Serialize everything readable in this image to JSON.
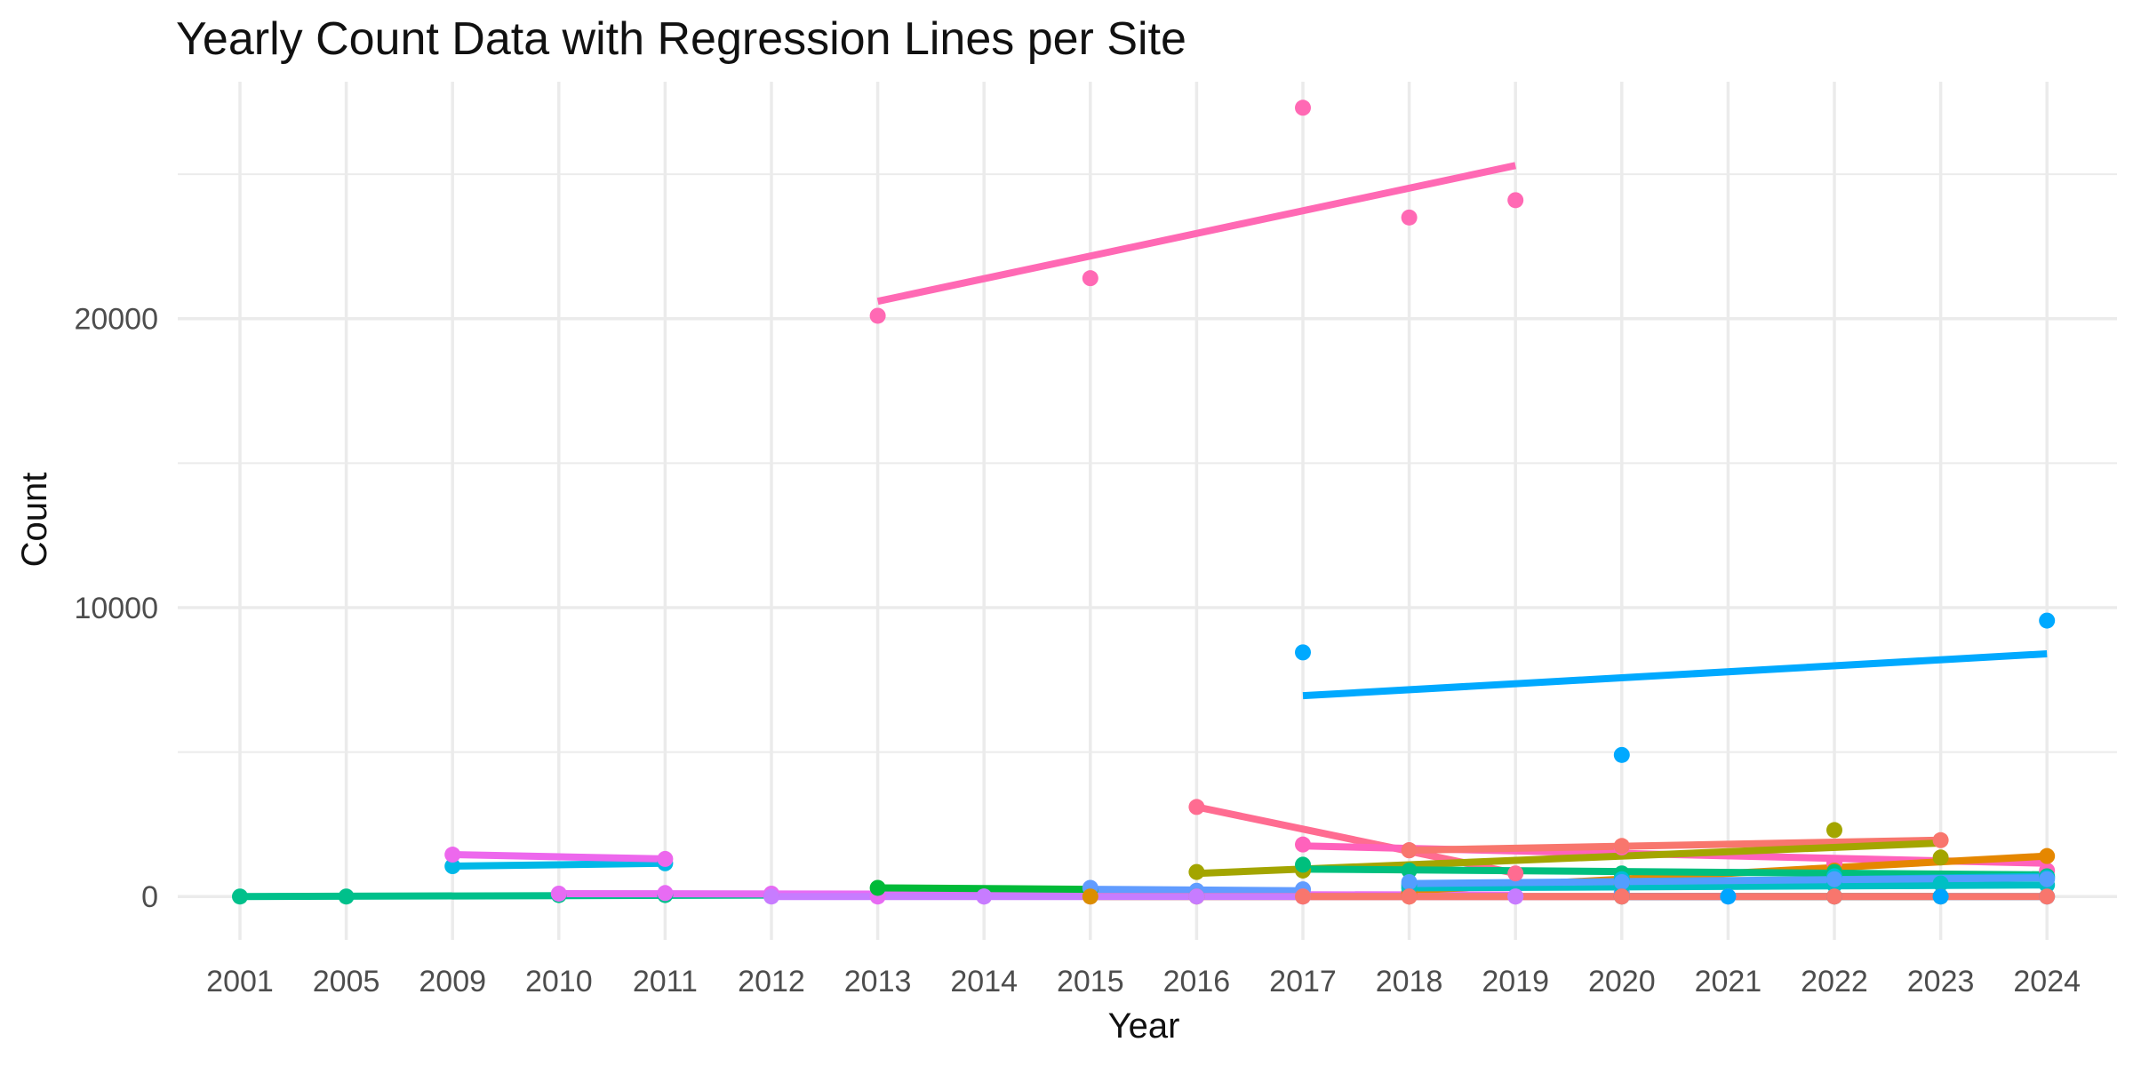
{
  "chart_data": {
    "type": "scatter",
    "title": "Yearly Count Data with Regression Lines per Site",
    "xlabel": "Year",
    "ylabel": "Count",
    "x_axis_kind": "categorical",
    "categories": [
      "2001",
      "2005",
      "2009",
      "2010",
      "2011",
      "2012",
      "2013",
      "2014",
      "2015",
      "2016",
      "2017",
      "2018",
      "2019",
      "2020",
      "2021",
      "2022",
      "2023",
      "2024"
    ],
    "y_ticks": [
      0,
      10000,
      20000
    ],
    "ylim": [
      -1500,
      28200
    ],
    "grid": true,
    "legend": "none",
    "series": [
      {
        "color": "#FF69B4",
        "points": [
          [
            "2013",
            20100
          ],
          [
            "2015",
            21400
          ],
          [
            "2017",
            27300
          ],
          [
            "2018",
            23500
          ],
          [
            "2019",
            24100
          ]
        ],
        "fit": [
          [
            "2013",
            20600
          ],
          [
            "2019",
            25300
          ]
        ]
      },
      {
        "color": "#00A9FF",
        "points": [
          [
            "2017",
            8450
          ],
          [
            "2020",
            4900
          ],
          [
            "2024",
            9550
          ]
        ],
        "fit": [
          [
            "2017",
            6950
          ],
          [
            "2024",
            8400
          ]
        ]
      },
      {
        "color": "#00B8E7",
        "points": [
          [
            "2009",
            1050
          ],
          [
            "2011",
            1150
          ]
        ],
        "fit": [
          [
            "2009",
            1050
          ],
          [
            "2011",
            1150
          ]
        ]
      },
      {
        "color": "#ED68ED",
        "points": [
          [
            "2009",
            1450
          ],
          [
            "2011",
            1300
          ]
        ],
        "fit": [
          [
            "2009",
            1450
          ],
          [
            "2011",
            1300
          ]
        ]
      },
      {
        "color": "#00C08B",
        "points": [
          [
            "2001",
            0
          ],
          [
            "2005",
            0
          ],
          [
            "2010",
            50
          ],
          [
            "2011",
            50
          ],
          [
            "2012",
            50
          ]
        ],
        "fit": [
          [
            "2001",
            0
          ],
          [
            "2012",
            50
          ]
        ]
      },
      {
        "color": "#E76BF3",
        "points": [
          [
            "2010",
            100
          ],
          [
            "2011",
            120
          ],
          [
            "2012",
            100
          ],
          [
            "2013",
            0
          ],
          [
            "2014",
            0
          ],
          [
            "2015",
            0
          ],
          [
            "2017",
            0
          ],
          [
            "2018",
            0
          ],
          [
            "2019",
            0
          ]
        ],
        "fit": [
          [
            "2010",
            100
          ],
          [
            "2019",
            50
          ]
        ]
      },
      {
        "color": "#00BA38",
        "points": [
          [
            "2013",
            300
          ],
          [
            "2015",
            250
          ]
        ],
        "fit": [
          [
            "2013",
            300
          ],
          [
            "2015",
            250
          ]
        ]
      },
      {
        "color": "#619CFF",
        "points": [
          [
            "2015",
            300
          ],
          [
            "2016",
            200
          ],
          [
            "2017",
            250
          ],
          [
            "2020",
            150
          ]
        ],
        "fit": [
          [
            "2015",
            250
          ],
          [
            "2017",
            200
          ]
        ]
      },
      {
        "color": "#FF6C91",
        "points": [
          [
            "2016",
            3100
          ],
          [
            "2018",
            1600
          ],
          [
            "2019",
            800
          ]
        ],
        "fit": [
          [
            "2016",
            3100
          ],
          [
            "2019",
            800
          ]
        ]
      },
      {
        "color": "#FF62BC",
        "points": [
          [
            "2017",
            1800
          ],
          [
            "2018",
            1600
          ],
          [
            "2020",
            1700
          ],
          [
            "2022",
            1150
          ],
          [
            "2024",
            900
          ]
        ],
        "fit": [
          [
            "2017",
            1750
          ],
          [
            "2024",
            1150
          ]
        ]
      },
      {
        "color": "#F8766D",
        "points": [
          [
            "2018",
            1600
          ],
          [
            "2020",
            1750
          ],
          [
            "2023",
            1950
          ]
        ],
        "fit": [
          [
            "2018",
            1600
          ],
          [
            "2023",
            1950
          ]
        ]
      },
      {
        "color": "#A3A500",
        "points": [
          [
            "2016",
            850
          ],
          [
            "2017",
            900
          ],
          [
            "2022",
            2300
          ],
          [
            "2023",
            1350
          ]
        ],
        "fit": [
          [
            "2016",
            800
          ],
          [
            "2023",
            1850
          ]
        ]
      },
      {
        "color": "#E58700",
        "points": [
          [
            "2018",
            150
          ],
          [
            "2020",
            400
          ],
          [
            "2022",
            900
          ],
          [
            "2024",
            1400
          ]
        ],
        "fit": [
          [
            "2018",
            200
          ],
          [
            "2024",
            1400
          ]
        ]
      },
      {
        "color": "#00BF7D",
        "points": [
          [
            "2017",
            1100
          ],
          [
            "2018",
            900
          ],
          [
            "2020",
            800
          ],
          [
            "2022",
            850
          ],
          [
            "2024",
            700
          ]
        ],
        "fit": [
          [
            "2017",
            950
          ],
          [
            "2024",
            750
          ]
        ]
      },
      {
        "color": "#00BCD8",
        "points": [
          [
            "2018",
            400
          ],
          [
            "2020",
            600
          ],
          [
            "2022",
            700
          ],
          [
            "2024",
            650
          ]
        ],
        "fit": [
          [
            "2018",
            350
          ],
          [
            "2024",
            700
          ]
        ]
      },
      {
        "color": "#00BFC4",
        "points": [
          [
            "2018",
            300
          ],
          [
            "2020",
            350
          ],
          [
            "2022",
            400
          ],
          [
            "2023",
            450
          ],
          [
            "2024",
            400
          ]
        ],
        "fit": [
          [
            "2018",
            300
          ],
          [
            "2024",
            400
          ]
        ]
      },
      {
        "color": "#529EFF",
        "points": [
          [
            "2018",
            500
          ],
          [
            "2020",
            500
          ],
          [
            "2022",
            600
          ],
          [
            "2024",
            600
          ]
        ],
        "fit": [
          [
            "2018",
            450
          ],
          [
            "2024",
            650
          ]
        ]
      },
      {
        "color": "#DB8E00",
        "points": [
          [
            "2015",
            0
          ],
          [
            "2016",
            0
          ],
          [
            "2018",
            0
          ],
          [
            "2020",
            0
          ],
          [
            "2022",
            0
          ],
          [
            "2023",
            0
          ]
        ],
        "fit": [
          [
            "2015",
            0
          ],
          [
            "2023",
            0
          ]
        ]
      },
      {
        "color": "#C77CFF",
        "points": [
          [
            "2012",
            0
          ],
          [
            "2014",
            0
          ],
          [
            "2016",
            0
          ],
          [
            "2017",
            0
          ],
          [
            "2019",
            0
          ],
          [
            "2021",
            0
          ]
        ],
        "fit": [
          [
            "2012",
            0
          ],
          [
            "2021",
            0
          ]
        ]
      },
      {
        "color": "#00A5FF",
        "points": [
          [
            "2020",
            0
          ],
          [
            "2021",
            0
          ],
          [
            "2022",
            0
          ],
          [
            "2023",
            0
          ],
          [
            "2024",
            0
          ]
        ],
        "fit": [
          [
            "2020",
            0
          ],
          [
            "2024",
            0
          ]
        ]
      },
      {
        "color": "#F8766D",
        "points": [
          [
            "2017",
            0
          ],
          [
            "2018",
            0
          ],
          [
            "2020",
            0
          ],
          [
            "2022",
            0
          ],
          [
            "2024",
            0
          ]
        ],
        "fit": [
          [
            "2017",
            0
          ],
          [
            "2024",
            0
          ]
        ]
      }
    ]
  }
}
